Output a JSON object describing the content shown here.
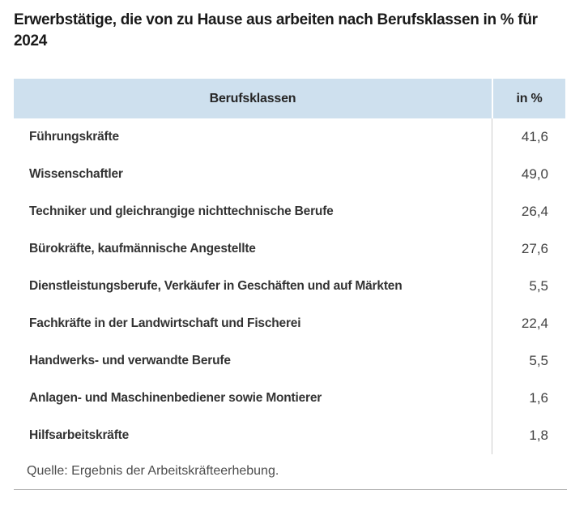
{
  "title": "Erwerbstätige, die von zu Hause aus arbeiten nach Berufsklassen in % für 2024",
  "source_note": "Quelle: Ergebnis der Arbeitskräfteerhebung.",
  "colors": {
    "header_bg": "#cee0ee",
    "column_divider": "#cccccc",
    "bottom_rule": "#b3b3b3"
  },
  "chart_data": {
    "type": "table",
    "title": "Erwerbstätige, die von zu Hause aus arbeiten nach Berufsklassen in % für 2024",
    "columns": [
      "Berufsklassen",
      "in %"
    ],
    "unit": "%",
    "year": "2024",
    "categories": [
      "Führungskräfte",
      "Wissenschaftler",
      "Techniker und gleichrangige nichttechnische Berufe",
      "Bürokräfte, kaufmännische Angestellte",
      "Dienstleistungsberufe, Verkäufer in Geschäften und auf Märkten",
      "Fachkräfte in der Landwirtschaft und Fischerei",
      "Handwerks- und verwandte Berufe",
      "Anlagen- und Maschinenbediener sowie Montierer",
      "Hilfsarbeitskräfte"
    ],
    "values": [
      41.6,
      49.0,
      26.4,
      27.6,
      5.5,
      22.4,
      5.5,
      1.6,
      1.8
    ],
    "rows": [
      {
        "label": "Führungskräfte",
        "value": "41,6"
      },
      {
        "label": "Wissenschaftler",
        "value": "49,0"
      },
      {
        "label": "Techniker und gleichrangige nichttechnische Berufe",
        "value": "26,4"
      },
      {
        "label": "Bürokräfte, kaufmännische Angestellte",
        "value": "27,6"
      },
      {
        "label": "Dienstleistungsberufe, Verkäufer in Geschäften und auf Märkten",
        "value": "5,5"
      },
      {
        "label": "Fachkräfte in der Landwirtschaft und Fischerei",
        "value": "22,4"
      },
      {
        "label": "Handwerks- und verwandte Berufe",
        "value": "5,5"
      },
      {
        "label": "Anlagen- und Maschinenbediener sowie Montierer",
        "value": "1,6"
      },
      {
        "label": "Hilfsarbeitskräfte",
        "value": "1,8"
      }
    ],
    "columns_meta": {
      "label_header": "Berufsklassen",
      "value_header": "in %"
    },
    "legend": false,
    "grid": false
  }
}
